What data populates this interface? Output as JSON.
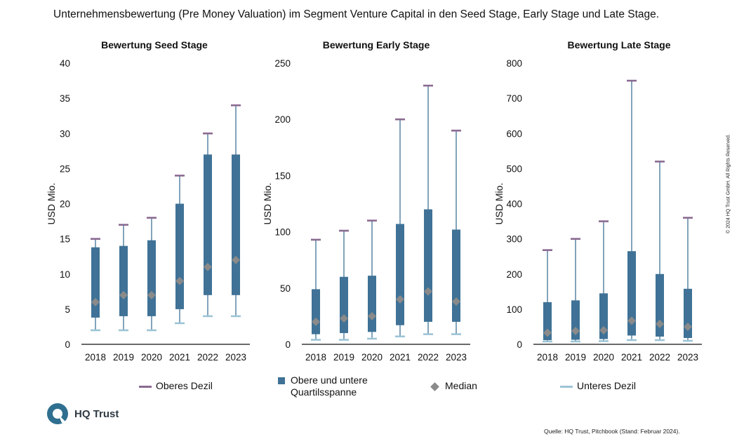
{
  "title": "Unternehmensbewertung (Pre Money Valuation) im Segment Venture Capital in den Seed Stage, Early Stage und Late Stage.",
  "colors": {
    "box": "#3f7296",
    "whisker": "#3f7296",
    "upper_decile": "#8a6a91",
    "lower_decile": "#9cc4d6",
    "median": "#8a8a8a"
  },
  "chart_data": [
    {
      "type": "box",
      "title": "Bewertung Seed Stage",
      "ylabel": "USD Mio.",
      "ylim": [
        0,
        40
      ],
      "yticks": [
        0,
        5,
        10,
        15,
        20,
        25,
        30,
        35,
        40
      ],
      "categories": [
        "2018",
        "2019",
        "2020",
        "2021",
        "2022",
        "2023"
      ],
      "upper_decile": [
        15,
        17,
        18,
        24,
        30,
        34
      ],
      "q3": [
        13.8,
        14,
        14.8,
        20,
        27,
        27
      ],
      "median": [
        6,
        7,
        7,
        9,
        11,
        12
      ],
      "q1": [
        3.8,
        4,
        4,
        5,
        7,
        7
      ],
      "lower_decile": [
        2,
        2,
        2,
        3,
        4,
        4
      ]
    },
    {
      "type": "box",
      "title": "Bewertung Early Stage",
      "ylabel": "USD Mio.",
      "ylim": [
        0,
        250
      ],
      "yticks": [
        0,
        50,
        100,
        150,
        200,
        250
      ],
      "categories": [
        "2018",
        "2019",
        "2020",
        "2021",
        "2022",
        "2023"
      ],
      "upper_decile": [
        93,
        101,
        110,
        200,
        230,
        190
      ],
      "q3": [
        49,
        60,
        61,
        107,
        120,
        102
      ],
      "median": [
        20,
        23,
        25,
        40,
        47,
        38
      ],
      "q1": [
        9,
        10,
        11,
        17,
        20,
        20
      ],
      "lower_decile": [
        4,
        4,
        5,
        7,
        9,
        9
      ]
    },
    {
      "type": "box",
      "title": "Bewertung Late Stage",
      "ylabel": "USD Mio.",
      "ylim": [
        0,
        800
      ],
      "yticks": [
        0,
        100,
        200,
        300,
        400,
        500,
        600,
        700,
        800
      ],
      "categories": [
        "2018",
        "2019",
        "2020",
        "2021",
        "2022",
        "2023"
      ],
      "upper_decile": [
        268,
        300,
        350,
        750,
        520,
        360
      ],
      "q3": [
        120,
        125,
        145,
        265,
        200,
        158
      ],
      "median": [
        33,
        38,
        40,
        67,
        58,
        50
      ],
      "q1": [
        12,
        13,
        15,
        25,
        22,
        18
      ],
      "lower_decile": [
        8,
        8,
        9,
        12,
        12,
        10
      ]
    }
  ],
  "legend": {
    "upper_decile": "Oberes Dezil",
    "quartile_line1": "Obere und untere",
    "quartile_line2": "Quartilsspanne",
    "median": "Median",
    "lower_decile": "Unteres Dezil"
  },
  "logo_text": "HQ Trust",
  "source": "Quelle: HQ Trust, Pitchbook (Stand: Februar 2024).",
  "copyright": "© 2024 HQ Trust GmbH. All Rights Reserved."
}
